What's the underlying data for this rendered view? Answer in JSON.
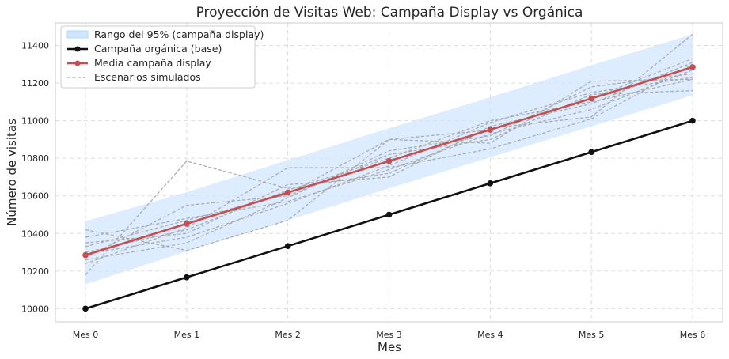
{
  "chart_data": {
    "type": "line",
    "title": "Proyección de Visitas Web: Campaña Display vs Orgánica",
    "xlabel": "Mes",
    "ylabel": "Número de visitas",
    "categories": [
      "Mes 0",
      "Mes 1",
      "Mes 2",
      "Mes 3",
      "Mes 4",
      "Mes 5",
      "Mes 6"
    ],
    "yticks": [
      10000,
      10200,
      10400,
      10600,
      10800,
      11000,
      11200,
      11400
    ],
    "ylim": [
      9930,
      11520
    ],
    "grid": true,
    "legend_position": "top-left",
    "band": {
      "name": "Rango del 95% (campaña display)",
      "color": "#cfe6ff",
      "lower": [
        10130,
        10305,
        10470,
        10640,
        10805,
        10970,
        11135
      ],
      "upper": [
        10465,
        10620,
        10790,
        10960,
        11125,
        11295,
        11460
      ]
    },
    "series": [
      {
        "name": "Campaña orgánica (base)",
        "color": "#111111",
        "values": [
          10000,
          10167,
          10333,
          10500,
          10667,
          10833,
          11000
        ]
      },
      {
        "name": "Media campaña display",
        "color": "#c44e52",
        "values": [
          10285,
          10452,
          10618,
          10785,
          10952,
          11118,
          11285
        ]
      }
    ],
    "scenarios": {
      "name": "Escenarios simulados",
      "color": "#a8a8a8",
      "lines": [
        [
          10180,
          10785,
          10640,
          10720,
          10960,
          11020,
          11460
        ],
        [
          10330,
          10470,
          10610,
          10900,
          10880,
          11210,
          11220
        ],
        [
          10420,
          10310,
          10470,
          10900,
          10950,
          11120,
          11330
        ],
        [
          10290,
          10380,
          10560,
          10760,
          10990,
          11150,
          11230
        ],
        [
          10240,
          10430,
          10750,
          10750,
          10850,
          11010,
          11300
        ],
        [
          10270,
          10550,
          10600,
          10820,
          10900,
          11140,
          11160
        ],
        [
          10380,
          10480,
          10570,
          10740,
          10930,
          11060,
          11270
        ],
        [
          10300,
          10420,
          10630,
          10800,
          11000,
          11100,
          11220
        ],
        [
          10260,
          10350,
          10590,
          10840,
          10920,
          11180,
          11250
        ],
        [
          10350,
          10400,
          10660,
          10700,
          10970,
          11090,
          11310
        ]
      ]
    }
  }
}
